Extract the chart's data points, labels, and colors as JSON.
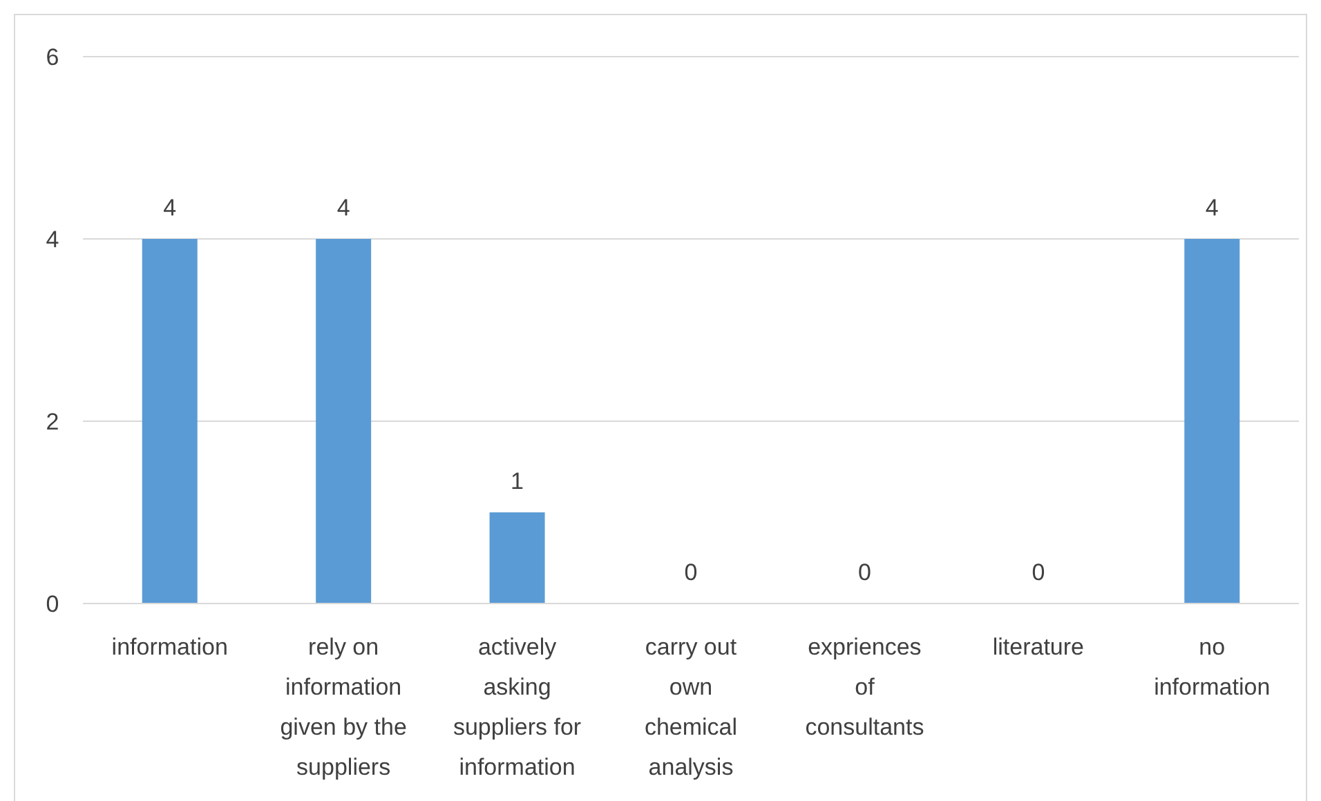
{
  "chart_data": {
    "type": "bar",
    "categories": [
      "information",
      "rely on information given by the suppliers",
      "actively asking suppliers for information",
      "carry out own chemical analysis",
      "expriences of consultants",
      "literature",
      "no information"
    ],
    "values": [
      4,
      4,
      1,
      0,
      0,
      0,
      4
    ],
    "color": "#5b9bd5",
    "ylim": [
      0,
      6
    ],
    "yticks": [
      0,
      2,
      4,
      6
    ],
    "grid": "y",
    "data_labels": true
  }
}
